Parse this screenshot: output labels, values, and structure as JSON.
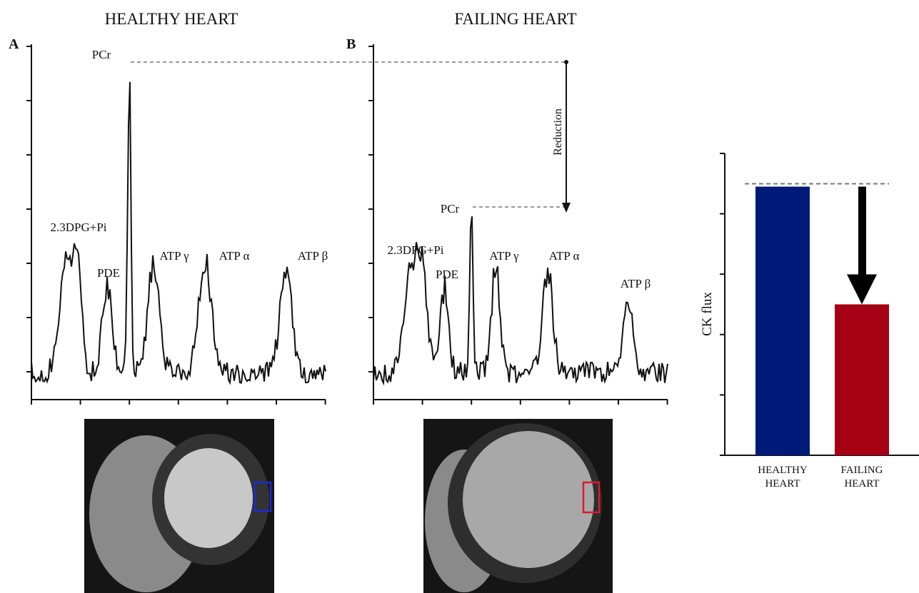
{
  "figure": {
    "titles": [
      "HEALTHY HEART",
      "FAILING HEART"
    ],
    "panel_labels": [
      "A",
      "B"
    ],
    "spectra": [
      {
        "labels": [
          "PCr",
          "2.3DPG+Pi",
          "PDE",
          "ATP γ",
          "ATP α",
          "ATP β"
        ]
      },
      {
        "labels": [
          "PCr",
          "2.3DPG+Pi",
          "PDE",
          "ATP γ",
          "ATP α",
          "ATP β"
        ]
      }
    ],
    "annotation": "Reduction"
  },
  "chart_data": {
    "type": "bar",
    "ylabel": "CK flux",
    "categories": [
      "HEALTHY HEART",
      "FAILING HEART"
    ],
    "values": [
      4.45,
      2.5
    ],
    "colors": [
      "#001a7a",
      "#a50014"
    ],
    "ylim": [
      0,
      5
    ],
    "yticks": [
      0,
      1,
      2,
      3,
      4,
      5
    ]
  }
}
